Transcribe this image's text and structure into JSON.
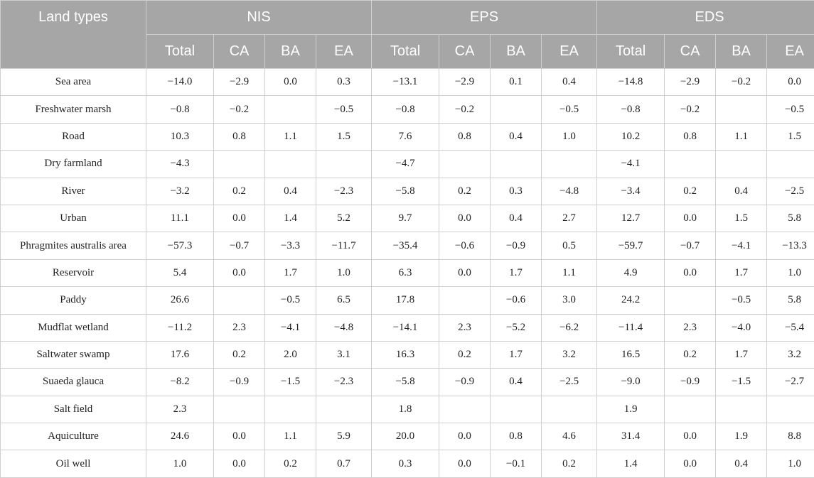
{
  "table": {
    "land_types_label": "Land types",
    "groups": [
      "NIS",
      "EPS",
      "EDS"
    ],
    "subheaders": [
      "Total",
      "CA",
      "BA",
      "EA"
    ],
    "rows": [
      {
        "name": "Sea area",
        "values": [
          "−14.0",
          "−2.9",
          "0.0",
          "0.3",
          "−13.1",
          "−2.9",
          "0.1",
          "0.4",
          "−14.8",
          "−2.9",
          "−0.2",
          "0.0"
        ]
      },
      {
        "name": "Freshwater marsh",
        "values": [
          "−0.8",
          "−0.2",
          "",
          "−0.5",
          "−0.8",
          "−0.2",
          "",
          "−0.5",
          "−0.8",
          "−0.2",
          "",
          "−0.5"
        ]
      },
      {
        "name": "Road",
        "values": [
          "10.3",
          "0.8",
          "1.1",
          "1.5",
          "7.6",
          "0.8",
          "0.4",
          "1.0",
          "10.2",
          "0.8",
          "1.1",
          "1.5"
        ]
      },
      {
        "name": "Dry farmland",
        "values": [
          "−4.3",
          "",
          "",
          "",
          "−4.7",
          "",
          "",
          "",
          "−4.1",
          "",
          "",
          ""
        ]
      },
      {
        "name": "River",
        "values": [
          "−3.2",
          "0.2",
          "0.4",
          "−2.3",
          "−5.8",
          "0.2",
          "0.3",
          "−4.8",
          "−3.4",
          "0.2",
          "0.4",
          "−2.5"
        ]
      },
      {
        "name": "Urban",
        "values": [
          "11.1",
          "0.0",
          "1.4",
          "5.2",
          "9.7",
          "0.0",
          "0.4",
          "2.7",
          "12.7",
          "0.0",
          "1.5",
          "5.8"
        ]
      },
      {
        "name": "Phragmites australis area",
        "values": [
          "−57.3",
          "−0.7",
          "−3.3",
          "−11.7",
          "−35.4",
          "−0.6",
          "−0.9",
          "0.5",
          "−59.7",
          "−0.7",
          "−4.1",
          "−13.3"
        ]
      },
      {
        "name": "Reservoir",
        "values": [
          "5.4",
          "0.0",
          "1.7",
          "1.0",
          "6.3",
          "0.0",
          "1.7",
          "1.1",
          "4.9",
          "0.0",
          "1.7",
          "1.0"
        ]
      },
      {
        "name": "Paddy",
        "values": [
          "26.6",
          "",
          "−0.5",
          "6.5",
          "17.8",
          "",
          "−0.6",
          "3.0",
          "24.2",
          "",
          "−0.5",
          "5.8"
        ]
      },
      {
        "name": "Mudflat wetland",
        "values": [
          "−11.2",
          "2.3",
          "−4.1",
          "−4.8",
          "−14.1",
          "2.3",
          "−5.2",
          "−6.2",
          "−11.4",
          "2.3",
          "−4.0",
          "−5.4"
        ]
      },
      {
        "name": "Saltwater swamp",
        "values": [
          "17.6",
          "0.2",
          "2.0",
          "3.1",
          "16.3",
          "0.2",
          "1.7",
          "3.2",
          "16.5",
          "0.2",
          "1.7",
          "3.2"
        ]
      },
      {
        "name": "Suaeda glauca",
        "values": [
          "−8.2",
          "−0.9",
          "−1.5",
          "−2.3",
          "−5.8",
          "−0.9",
          "0.4",
          "−2.5",
          "−9.0",
          "−0.9",
          "−1.5",
          "−2.7"
        ]
      },
      {
        "name": "Salt field",
        "values": [
          "2.3",
          "",
          "",
          "",
          "1.8",
          "",
          "",
          "",
          "1.9",
          "",
          "",
          ""
        ]
      },
      {
        "name": "Aquiculture",
        "values": [
          "24.6",
          "0.0",
          "1.1",
          "5.9",
          "20.0",
          "0.0",
          "0.8",
          "4.6",
          "31.4",
          "0.0",
          "1.9",
          "8.8"
        ]
      },
      {
        "name": "Oil well",
        "values": [
          "1.0",
          "0.0",
          "0.2",
          "0.7",
          "0.3",
          "0.0",
          "−0.1",
          "0.2",
          "1.4",
          "0.0",
          "0.4",
          "1.0"
        ]
      }
    ]
  }
}
